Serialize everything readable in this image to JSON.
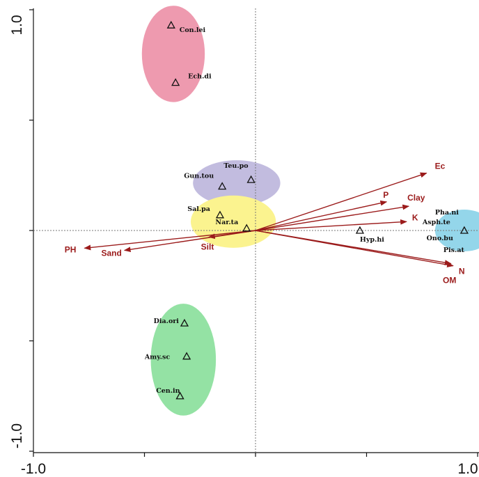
{
  "chart_data": {
    "type": "scatter",
    "title": "",
    "xlabel": "",
    "ylabel": "",
    "xlim": [
      -1.0,
      1.0
    ],
    "ylim": [
      -1.0,
      1.0
    ],
    "x_tick_labels": [
      "-1.0",
      "1.0"
    ],
    "y_tick_labels": [
      "1.0",
      "-1.0"
    ],
    "axis_color": "#111111",
    "arrow_color": "#9b1b1b",
    "species_marker": "open-triangle",
    "species": [
      {
        "name": "Con.lei",
        "x": -0.38,
        "y": 0.93
      },
      {
        "name": "Ech.di",
        "x": -0.36,
        "y": 0.67
      },
      {
        "name": "Gun.tou",
        "x": -0.15,
        "y": 0.2
      },
      {
        "name": "Teu.po",
        "x": -0.02,
        "y": 0.23
      },
      {
        "name": "Sal.pa",
        "x": -0.16,
        "y": 0.07
      },
      {
        "name": "Nar.ta",
        "x": -0.04,
        "y": 0.01
      },
      {
        "name": "Hyp.hi",
        "x": 0.47,
        "y": 0.0
      },
      {
        "name": "Pha.ni",
        "x": 0.94,
        "y": 0.0
      },
      {
        "name": "Asph.te",
        "x": 0.94,
        "y": 0.0
      },
      {
        "name": "Ono.bu",
        "x": 0.94,
        "y": 0.0
      },
      {
        "name": "Pis.at",
        "x": 0.94,
        "y": 0.0
      },
      {
        "name": "Dia.ori",
        "x": -0.32,
        "y": -0.42
      },
      {
        "name": "Amy.sc",
        "x": -0.31,
        "y": -0.57
      },
      {
        "name": "Cen.in",
        "x": -0.34,
        "y": -0.75
      }
    ],
    "environmental_vectors": [
      {
        "name": "Ec",
        "x": 0.77,
        "y": 0.26
      },
      {
        "name": "P",
        "x": 0.59,
        "y": 0.13
      },
      {
        "name": "Clay",
        "x": 0.69,
        "y": 0.11
      },
      {
        "name": "K",
        "x": 0.68,
        "y": 0.04
      },
      {
        "name": "N",
        "x": 0.89,
        "y": -0.16
      },
      {
        "name": "OM",
        "x": 0.88,
        "y": -0.15
      },
      {
        "name": "PH",
        "x": -0.77,
        "y": -0.08
      },
      {
        "name": "Sand",
        "x": -0.59,
        "y": -0.09
      },
      {
        "name": "Silt",
        "x": -0.21,
        "y": -0.03
      }
    ],
    "groups": [
      {
        "members": [
          "Con.lei",
          "Ech.di"
        ],
        "color": "#ee9aaf"
      },
      {
        "members": [
          "Gun.tou",
          "Teu.po"
        ],
        "color": "#c2bcdf"
      },
      {
        "members": [
          "Sal.pa",
          "Nar.ta"
        ],
        "color": "#fbf38f"
      },
      {
        "members": [
          "Pha.ni",
          "Asph.te",
          "Ono.bu",
          "Pis.at"
        ],
        "color": "#94d6ea"
      },
      {
        "members": [
          "Dia.ori",
          "Amy.sc",
          "Cen.in"
        ],
        "color": "#94e2a4"
      }
    ]
  }
}
